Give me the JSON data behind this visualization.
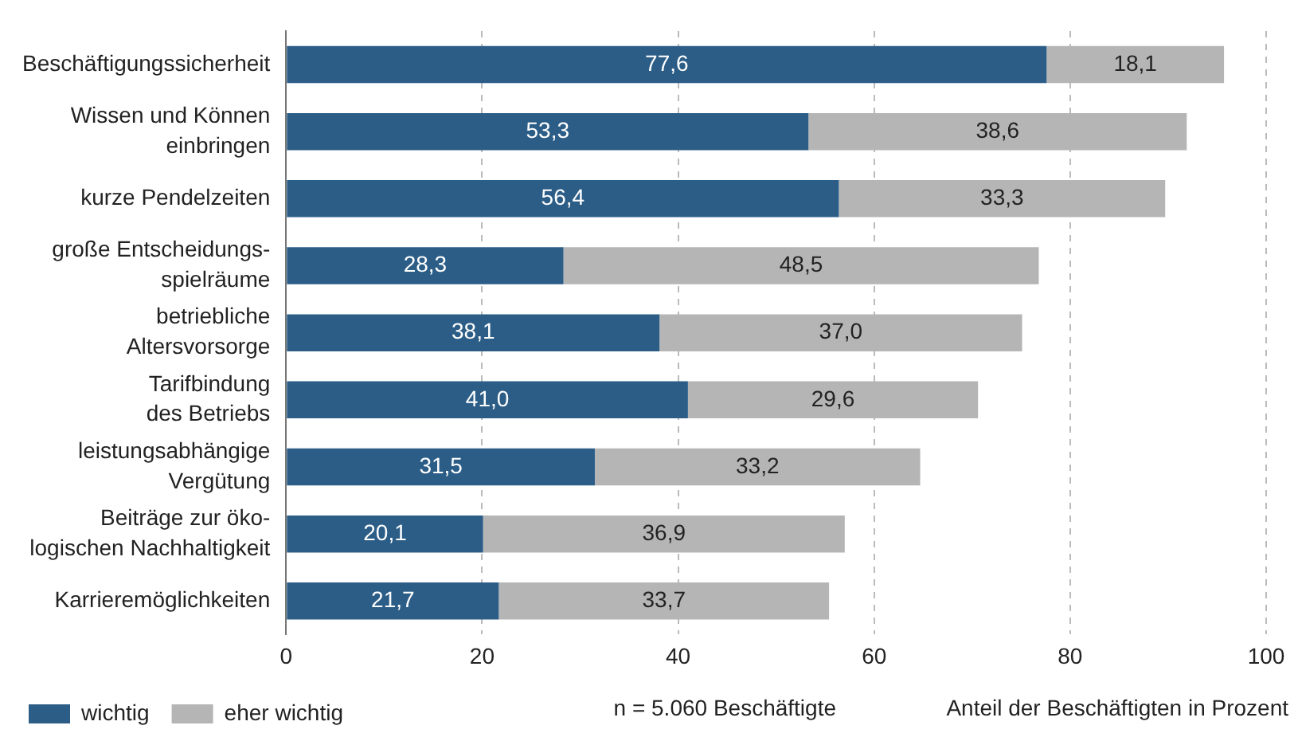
{
  "chart_data": {
    "type": "bar",
    "orientation": "horizontal",
    "stacked": true,
    "categories": [
      "Beschäftigungssicherheit",
      "Wissen und Können\neinbringen",
      "kurze Pendelzeiten",
      "große Entscheidungs-\nspielräume",
      "betriebliche\nAltersvorsorge",
      "Tarifbindung\ndes Betriebs",
      "leistungsabhängige\nVergütung",
      "Beiträge zur öko-\nlogischen Nachhaltigkeit",
      "Karrieremöglichkeiten"
    ],
    "series": [
      {
        "name": "wichtig",
        "color": "#2b5d87",
        "values": [
          77.6,
          53.3,
          56.4,
          28.3,
          38.1,
          41.0,
          31.5,
          20.1,
          21.7
        ],
        "value_labels": [
          "77,6",
          "53,3",
          "56,4",
          "28,3",
          "38,1",
          "41,0",
          "31,5",
          "20,1",
          "21,7"
        ]
      },
      {
        "name": "eher wichtig",
        "color": "#b5b5b5",
        "values": [
          18.1,
          38.6,
          33.3,
          48.5,
          37.0,
          29.6,
          33.2,
          36.9,
          33.7
        ],
        "value_labels": [
          "18,1",
          "38,6",
          "33,3",
          "48,5",
          "37,0",
          "29,6",
          "33,2",
          "36,9",
          "33,7"
        ]
      }
    ],
    "xlim": [
      0,
      100
    ],
    "xticks": [
      0,
      20,
      40,
      60,
      80,
      100
    ],
    "grid": "x",
    "legend": "bottom left",
    "xlabel": "Anteil der Beschäftigten in Prozent",
    "annotations": [
      "n = 5.060 Beschäftigte"
    ]
  }
}
